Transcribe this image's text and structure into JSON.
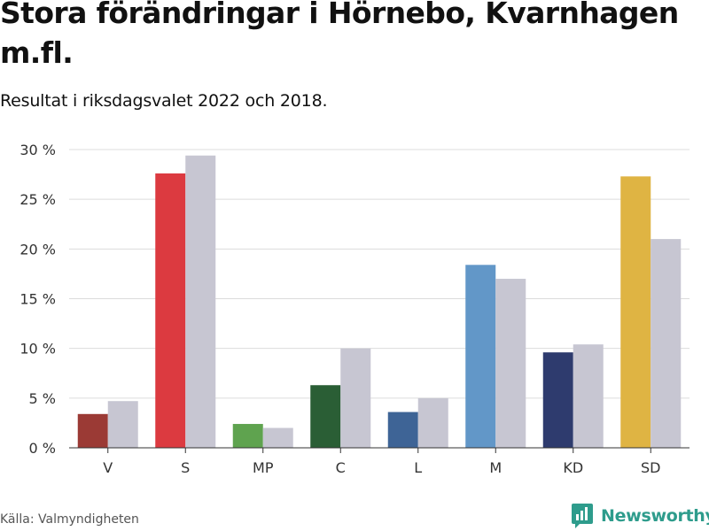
{
  "title": "Stora förändringar i Hörnebo, Kvarnhagen m.fl.",
  "subtitle": "Resultat i riksdagsvalet 2022 och 2018.",
  "source": "Källa: Valmyndigheten",
  "logo": {
    "text": "Newsworthy",
    "icon": "bar-chart-badge-icon",
    "color": "#2e9c8c"
  },
  "chart_data": {
    "type": "bar",
    "categories": [
      "V",
      "S",
      "MP",
      "C",
      "L",
      "M",
      "KD",
      "SD"
    ],
    "series": [
      {
        "name": "2022",
        "values": [
          3.4,
          27.6,
          2.4,
          6.3,
          3.6,
          18.4,
          9.6,
          27.3
        ],
        "colors": [
          "#9b3a35",
          "#dc3a40",
          "#5fa34f",
          "#2a5e35",
          "#3e6496",
          "#6297c8",
          "#2e3b6e",
          "#dfb443"
        ]
      },
      {
        "name": "2018",
        "values": [
          4.7,
          29.4,
          2.0,
          10.0,
          5.0,
          17.0,
          10.4,
          21.0
        ],
        "colors": [
          "#c7c6d2",
          "#c7c6d2",
          "#c7c6d2",
          "#c7c6d2",
          "#c7c6d2",
          "#c7c6d2",
          "#c7c6d2",
          "#c7c6d2"
        ]
      }
    ],
    "y_ticks": [
      "0 %",
      "5 %",
      "10 %",
      "15 %",
      "20 %",
      "25 %",
      "30 %"
    ],
    "ylim": [
      0,
      30
    ],
    "grid": true,
    "legend": "none"
  }
}
